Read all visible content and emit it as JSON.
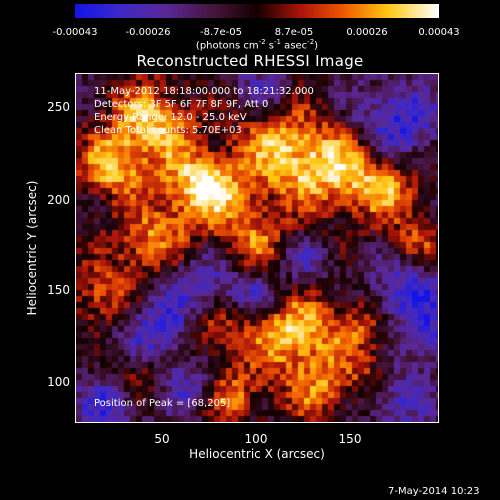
{
  "colorbar": {
    "ticks": [
      "-0.00043",
      "-0.00026",
      "-8.7e-05",
      "8.7e-05",
      "0.00026",
      "0.00043"
    ],
    "unit_prefix": "(photons cm",
    "unit_exp1": "-2",
    "unit_mid": " s",
    "unit_exp2": "-1",
    "unit_mid2": " asec",
    "unit_exp3": "-2",
    "unit_suffix": ")",
    "colormap": "black-blue-purple-red-orange-yellow-white"
  },
  "chart_data": {
    "type": "heatmap",
    "title": "Reconstructed RHESSI Image",
    "xlabel": "Heliocentric X (arcsec)",
    "ylabel": "Heliocentric Y (arcsec)",
    "xlim": [
      2,
      192
    ],
    "ylim": [
      75,
      268
    ],
    "xticks": [
      "50",
      "100",
      "150"
    ],
    "yticks": [
      "250",
      "200",
      "150",
      "100"
    ],
    "zlim": [
      -0.00043,
      0.00043
    ],
    "peak": [
      68,
      205
    ],
    "grid": false
  },
  "annotations": {
    "time_range": "11-May-2012 18:18:00.000 to 18:21:32.000",
    "detectors": "Detectors: 3F 5F 6F 7F 8F 9F, Att 0",
    "energy": "Energy Range: 12.0 - 25.0 keV",
    "method": "Clean    Total counts: 5.70E+03",
    "peak_text": "Position of Peak = [68,205]"
  },
  "footer": {
    "timestamp": "7-May-2014 10:23"
  }
}
